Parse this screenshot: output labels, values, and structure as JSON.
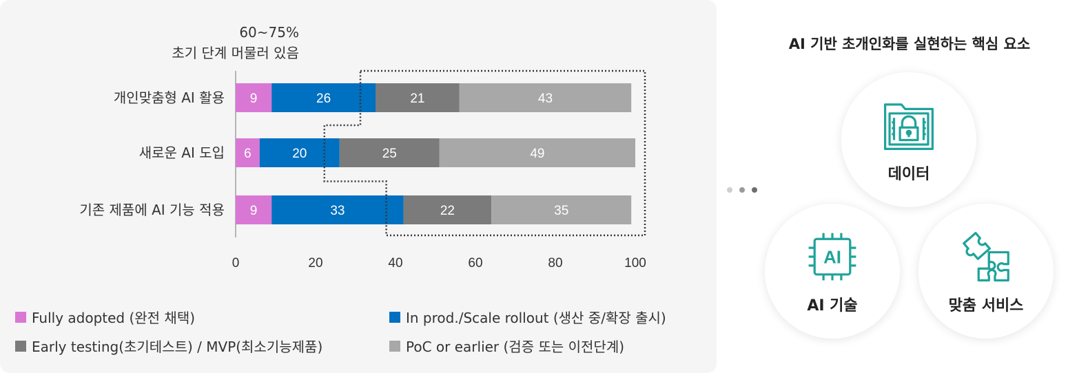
{
  "chart_data": {
    "type": "bar",
    "orientation": "horizontal",
    "stacked": true,
    "categories": [
      "개인맞춤형 AI 활용",
      "새로운 AI 도입",
      "기존 제품에 AI 기능 적용"
    ],
    "series": [
      {
        "name": "Fully adopted (완전 채택)",
        "values": [
          9,
          6,
          9
        ],
        "color": "#d977d4"
      },
      {
        "name": "In prod./Scale rollout (생산 중/확장 출시)",
        "values": [
          26,
          20,
          33
        ],
        "color": "#0070c0"
      },
      {
        "name": "Early testing(초기테스트) / MVP(최소기능제품)",
        "values": [
          21,
          25,
          22
        ],
        "color": "#7b7b7b"
      },
      {
        "name": "PoC or earlier (검증 또는 이전단계)",
        "values": [
          43,
          49,
          35
        ],
        "color": "#a8a8a8"
      }
    ],
    "xlim": [
      0,
      100
    ],
    "xticks": [
      "0",
      "20",
      "40",
      "60",
      "80",
      "100"
    ],
    "grid": false,
    "legend_position": "bottom",
    "annotation": {
      "line1": "60~75%",
      "line2": "초기 단계 머물러 있음"
    }
  },
  "right": {
    "title": "AI 기반 초개인화를 실현하는 핵심 요소",
    "items": [
      {
        "label": "데이터",
        "icon": "data-lock-folder-icon"
      },
      {
        "label": "AI 기술",
        "icon": "ai-chip-icon"
      },
      {
        "label": "맞춤 서비스",
        "icon": "puzzle-icon"
      }
    ],
    "accent": "#1fa39a",
    "dot_colors": [
      "#cfcfcf",
      "#9a9a9a",
      "#6d6d6d"
    ]
  }
}
